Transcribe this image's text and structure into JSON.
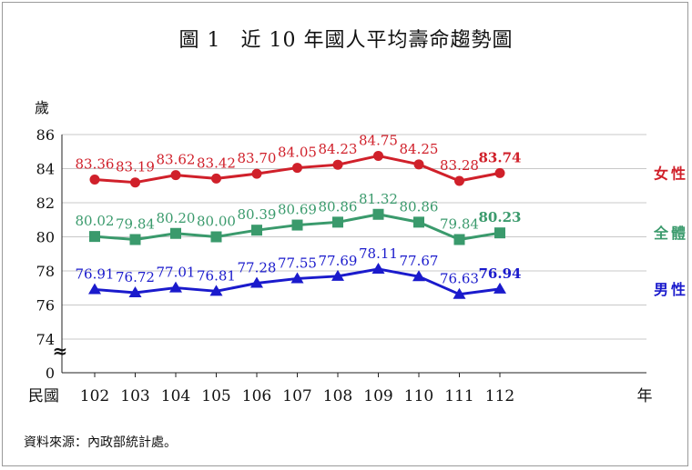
{
  "title": {
    "figure_number": "圖 1",
    "text": "近 10 年國人平均壽命趨勢圖"
  },
  "source_note": "資料來源：內政部統計處。",
  "colors": {
    "female": "#d0202a",
    "total": "#3a9a6c",
    "male": "#1a1acc",
    "grid": "#c8c8c8",
    "axis": "#222222"
  },
  "chart_data": {
    "type": "line",
    "title": "近 10 年國人平均壽命趨勢圖",
    "ylabel": "歲",
    "xlabel_prefix": "民國",
    "xlabel_suffix": "年",
    "categories": [
      "102",
      "103",
      "104",
      "105",
      "106",
      "107",
      "108",
      "109",
      "110",
      "111",
      "112"
    ],
    "ylim": [
      74,
      86
    ],
    "yticks": [
      "86",
      "84",
      "82",
      "80",
      "78",
      "76",
      "74",
      "0"
    ],
    "y_axis_break": true,
    "break_symbol": "≈",
    "grid": true,
    "legend_placement": "right-end-of-series",
    "series": [
      {
        "name": "女性",
        "marker": "circle",
        "values": [
          83.36,
          83.19,
          83.62,
          83.42,
          83.7,
          84.05,
          84.23,
          84.75,
          84.25,
          83.28,
          83.74
        ],
        "labels": [
          "83.36",
          "83.19",
          "83.62",
          "83.42",
          "83.70",
          "84.05",
          "84.23",
          "84.75",
          "84.25",
          "83.28",
          "83.74"
        ]
      },
      {
        "name": "全體",
        "marker": "square",
        "values": [
          80.02,
          79.84,
          80.2,
          80.0,
          80.39,
          80.69,
          80.86,
          81.32,
          80.86,
          79.84,
          80.23
        ],
        "labels": [
          "80.02",
          "79.84",
          "80.20",
          "80.00",
          "80.39",
          "80.69",
          "80.86",
          "81.32",
          "80.86",
          "79.84",
          "80.23"
        ]
      },
      {
        "name": "男性",
        "marker": "triangle",
        "values": [
          76.91,
          76.72,
          77.01,
          76.81,
          77.28,
          77.55,
          77.69,
          78.11,
          77.67,
          76.63,
          76.94
        ],
        "labels": [
          "76.91",
          "76.72",
          "77.01",
          "76.81",
          "77.28",
          "77.55",
          "77.69",
          "78.11",
          "77.67",
          "76.63",
          "76.94"
        ]
      }
    ]
  }
}
